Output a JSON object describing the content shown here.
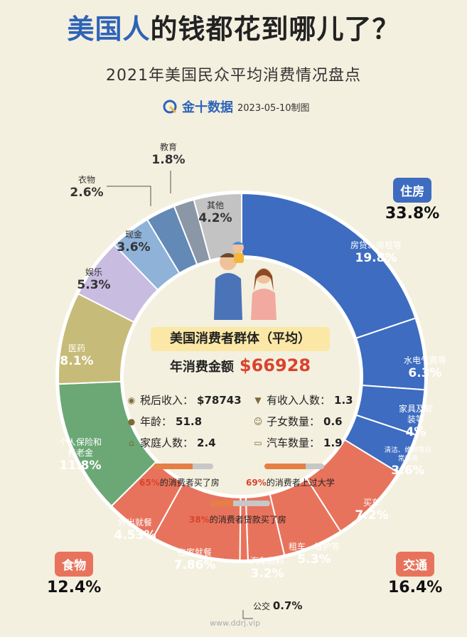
{
  "title": {
    "highlight": "美国人",
    "rest": "的钱都花到哪儿了？"
  },
  "subtitle": "2021年美国民众平均消费情况盘点",
  "brand": {
    "name": "金十数据",
    "date": "2023-05-10制图"
  },
  "colors": {
    "housing": "#3d6cc0",
    "transport": "#e8735c",
    "food": "#6ba876",
    "medical": "#c7bb79",
    "entertainment": "#c8bce0",
    "cash": "#8fb2d8",
    "clothing": "#6389b6",
    "education": "#8b97a6",
    "other": "#c3c3c3"
  },
  "chart_data": {
    "type": "pie",
    "donut": true,
    "categories": [
      {
        "name": "住房",
        "value": 33.8,
        "label": "33.8%"
      },
      {
        "name": "交通",
        "value": 16.4,
        "label": "16.4%"
      },
      {
        "name": "食物",
        "value": 12.4,
        "label": "12.4%"
      }
    ],
    "slices": [
      {
        "name": "房贷、房租等",
        "value": 19.8,
        "label": "19.8%",
        "group": "housing"
      },
      {
        "name": "水电气费等",
        "value": 6.3,
        "label": "6.3%",
        "group": "housing"
      },
      {
        "name": "家具及软装等",
        "value": 4,
        "label": "4%",
        "group": "housing"
      },
      {
        "name": "清洁、维修等日常费用",
        "value": 3.6,
        "label": "3.6%",
        "group": "housing"
      },
      {
        "name": "买车",
        "value": 7.2,
        "label": "7.2%",
        "group": "transport"
      },
      {
        "name": "租车、维护等",
        "value": 5.3,
        "label": "5.3%",
        "group": "transport"
      },
      {
        "name": "汽车燃料",
        "value": 3.2,
        "label": "3.2%",
        "group": "transport"
      },
      {
        "name": "公交",
        "value": 0.7,
        "label": "0.7%",
        "group": "transport"
      },
      {
        "name": "在家就餐",
        "value": 7.86,
        "label": "7.86%",
        "group": "food"
      },
      {
        "name": "外出就餐",
        "value": 4.53,
        "label": "4.53%",
        "group": "food"
      },
      {
        "name": "个人保险和养老金",
        "value": 11.8,
        "label": "11.8%",
        "group": "other_group"
      },
      {
        "name": "医药",
        "value": 8.1,
        "label": "8.1%",
        "group": "medical"
      },
      {
        "name": "娱乐",
        "value": 5.3,
        "label": "5.3%",
        "group": "entertainment"
      },
      {
        "name": "现金",
        "value": 3.6,
        "label": "3.6%",
        "group": "cash"
      },
      {
        "name": "衣物",
        "value": 2.6,
        "label": "2.6%",
        "group": "clothing"
      },
      {
        "name": "教育",
        "value": 1.8,
        "label": "1.8%",
        "group": "education"
      },
      {
        "name": "其他",
        "value": 4.2,
        "label": "4.2%",
        "group": "other"
      }
    ]
  },
  "panel": {
    "title": "美国消费者群体（平均）",
    "spend_label": "年消费金额",
    "spend_value": "$66928",
    "stats": [
      {
        "icon": "coins-icon",
        "label": "税后收入：",
        "value": "$78743"
      },
      {
        "icon": "tie-icon",
        "label": "有收入人数：",
        "value": "1.3"
      },
      {
        "icon": "person-icon",
        "label": "年龄：",
        "value": "51.8"
      },
      {
        "icon": "child-icon",
        "label": "子女数量：",
        "value": "0.6"
      },
      {
        "icon": "house-icon",
        "label": "家庭人数：",
        "value": "2.4"
      },
      {
        "icon": "car-icon",
        "label": "汽车数量：",
        "value": "1.9"
      }
    ],
    "notes": [
      {
        "pct": "65%",
        "text": "的消费者买了房",
        "fraction": 0.65
      },
      {
        "pct": "69%",
        "text": "的消费者上过大学",
        "fraction": 0.69
      },
      {
        "pct": "38%",
        "text": "的消费者贷款买了房",
        "fraction": 0.38
      }
    ]
  },
  "watermark": "www.ddrj.vip"
}
